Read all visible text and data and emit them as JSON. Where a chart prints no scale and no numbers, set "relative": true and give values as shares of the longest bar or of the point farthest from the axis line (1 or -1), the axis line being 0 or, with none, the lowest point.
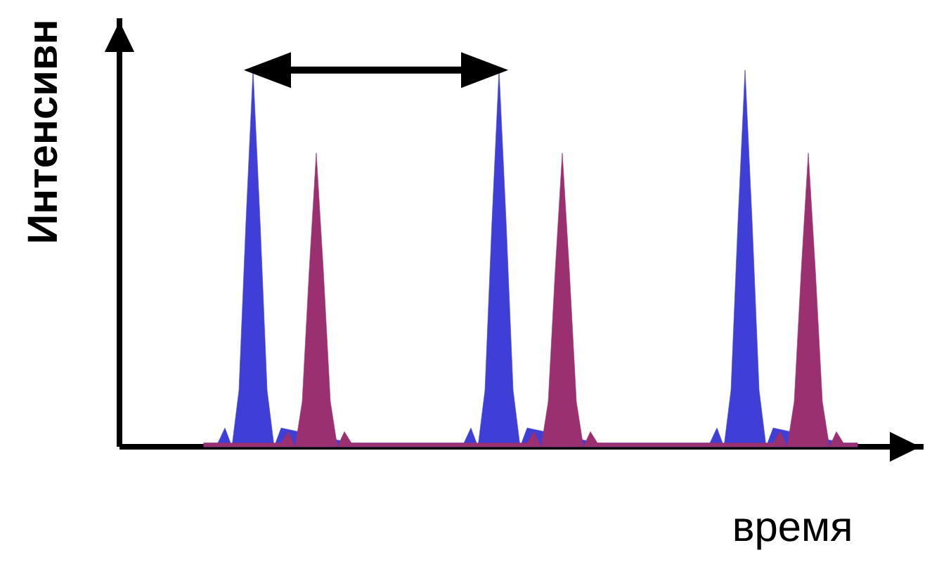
{
  "chart_data": {
    "type": "area",
    "relative": true,
    "xlabel": "время",
    "ylabel": "Интенсивн",
    "categories": [
      null,
      null,
      null,
      null,
      null,
      null,
      null,
      null,
      null,
      null,
      null,
      null,
      null,
      null,
      null,
      null,
      null,
      null,
      null,
      null,
      null,
      null,
      null,
      null,
      null,
      null,
      null,
      null,
      null,
      null,
      null,
      null,
      null,
      null,
      null,
      null,
      null,
      null,
      null,
      null,
      null,
      null,
      null,
      null,
      null,
      null,
      null,
      null,
      null,
      null,
      null,
      null,
      null,
      null,
      null,
      null,
      null,
      null,
      null,
      null,
      null,
      null,
      null,
      null,
      null,
      null,
      null,
      null,
      null,
      null,
      null,
      null,
      null,
      null,
      null,
      null,
      null,
      null,
      null,
      null,
      null,
      null,
      null,
      null,
      null,
      null,
      null,
      null,
      null,
      null,
      null,
      null,
      null,
      null
    ],
    "series": [
      {
        "color": "#3f3fd8",
        "values": [
          0.01,
          0.01,
          0.01,
          0.05,
          0,
          0.15,
          0.6,
          1,
          0.6,
          0.15,
          0,
          0.05,
          null,
          null,
          null,
          null,
          null,
          null,
          null,
          null,
          null,
          0.01,
          0.01,
          0.01,
          0.01,
          0.01,
          0.01,
          0.01,
          0.01,
          0.01,
          0.01,
          0.01,
          0.01,
          0.01,
          0.01,
          0.01,
          0.01,
          0.01,
          0.05,
          0,
          0.15,
          0.6,
          1,
          0.6,
          0.15,
          0,
          0.05,
          null,
          null,
          null,
          null,
          null,
          null,
          null,
          null,
          null,
          0.01,
          0.01,
          0.01,
          0.01,
          0.01,
          0.01,
          0.01,
          0.01,
          0.01,
          0.01,
          0.01,
          0.01,
          0.01,
          0.01,
          0.01,
          0.01,
          0.01,
          0.05,
          0,
          0.15,
          0.6,
          1,
          0.6,
          0.15,
          0,
          0.05,
          null,
          null,
          null,
          null,
          null,
          null,
          null,
          null,
          null,
          0.01,
          0.01,
          0.01
        ]
      },
      {
        "color": "#9a3070",
        "values": [
          0.01,
          0.01,
          0.01,
          0.01,
          0.01,
          0.01,
          0.01,
          0.01,
          0.01,
          0.01,
          0.01,
          0.01,
          0.04,
          0,
          0.12,
          0.47,
          0.78,
          0.47,
          0.12,
          0,
          0.04,
          0.01,
          0.01,
          0.01,
          0.01,
          0.01,
          0.01,
          0.01,
          0.01,
          0.01,
          0.01,
          0.01,
          0.01,
          0.01,
          0.01,
          0.01,
          0.01,
          0.01,
          0.01,
          0.01,
          0.01,
          0.01,
          0.01,
          0.01,
          0.01,
          0.01,
          0.01,
          0.04,
          0,
          0.12,
          0.47,
          0.78,
          0.47,
          0.12,
          0,
          0.04,
          0.01,
          0.01,
          0.01,
          0.01,
          0.01,
          0.01,
          0.01,
          0.01,
          0.01,
          0.01,
          0.01,
          0.01,
          0.01,
          0.01,
          0.01,
          0.01,
          0.01,
          0.01,
          0.01,
          0.01,
          0.01,
          0.01,
          0.01,
          0.01,
          0.01,
          0.01,
          0.04,
          0,
          0.12,
          0.47,
          0.78,
          0.47,
          0.12,
          0,
          0.04,
          0.01,
          0.01,
          0.01
        ]
      }
    ]
  }
}
